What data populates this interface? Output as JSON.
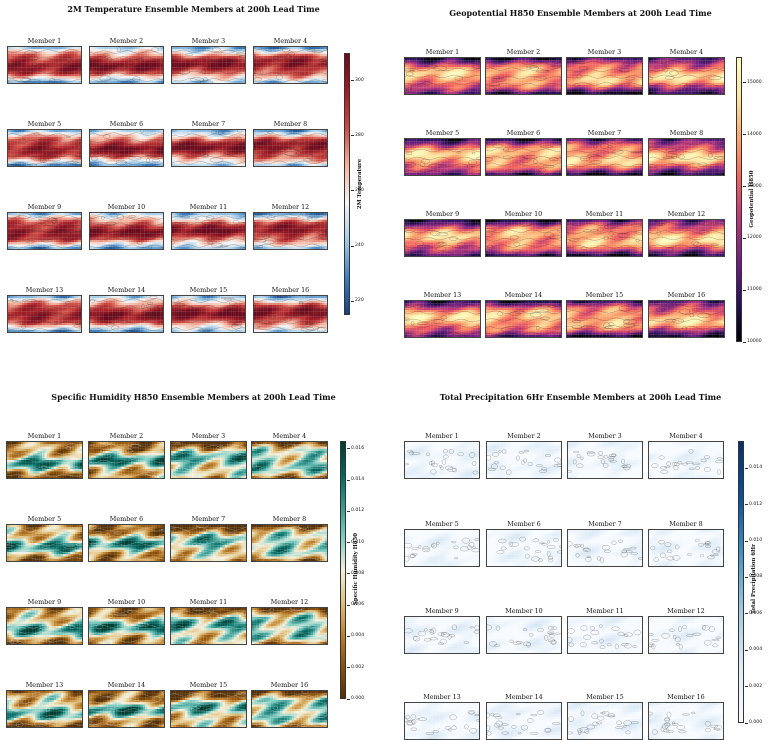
{
  "chart_data": [
    {
      "type": "heatmap",
      "title": "2M Temperature Ensemble Members at 200h Lead Time",
      "colorbar_label": "2M Temperature",
      "colormap": [
        "#1a3f7a",
        "#3f7fbf",
        "#a6cde8",
        "#f5f5f5",
        "#f4b6a0",
        "#cd4a44",
        "#a01c25",
        "#6b0a1c"
      ],
      "contour_color": "#2b2b2b",
      "colorbar_ticks": [
        "300",
        "280",
        "260",
        "240",
        "220"
      ],
      "range": [
        215,
        310
      ],
      "members": [
        "Member 1",
        "Member 2",
        "Member 3",
        "Member 4",
        "Member 5",
        "Member 6",
        "Member 7",
        "Member 8",
        "Member 9",
        "Member 10",
        "Member 11",
        "Member 12",
        "Member 13",
        "Member 14",
        "Member 15",
        "Member 16"
      ]
    },
    {
      "type": "heatmap",
      "title": "Geopotential H850 Ensemble Members at 200h Lead Time",
      "colorbar_label": "Geopotential H850",
      "colormap": [
        "#000004",
        "#2c115f",
        "#721f81",
        "#b73779",
        "#f1605d",
        "#fca46b",
        "#fde4a0",
        "#fcfdbf"
      ],
      "contour_color": "#3a1a2a",
      "colorbar_ticks": [
        "15000",
        "14000",
        "13000",
        "12000",
        "11000",
        "10000"
      ],
      "range": [
        10000,
        15500
      ],
      "members": [
        "Member 1",
        "Member 2",
        "Member 3",
        "Member 4",
        "Member 5",
        "Member 6",
        "Member 7",
        "Member 8",
        "Member 9",
        "Member 10",
        "Member 11",
        "Member 12",
        "Member 13",
        "Member 14",
        "Member 15",
        "Member 16"
      ]
    },
    {
      "type": "heatmap",
      "title": "Specific Humidity H850 Ensemble Members at 200h Lead Time",
      "colorbar_label": "Specific Humidity H850",
      "colormap": [
        "#543005",
        "#8c510a",
        "#bf812d",
        "#dfc27d",
        "#f5f0dc",
        "#80cdc1",
        "#35978f",
        "#01665e",
        "#003c30"
      ],
      "contour_color": "#f5f5f5",
      "colorbar_ticks": [
        "0.016",
        "0.014",
        "0.012",
        "0.010",
        "0.008",
        "0.006",
        "0.004",
        "0.002",
        "0.000"
      ],
      "range": [
        0.0,
        0.0165
      ],
      "members": [
        "Member 1",
        "Member 2",
        "Member 3",
        "Member 4",
        "Member 5",
        "Member 6",
        "Member 7",
        "Member 8",
        "Member 9",
        "Member 10",
        "Member 11",
        "Member 12",
        "Member 13",
        "Member 14",
        "Member 15",
        "Member 16"
      ]
    },
    {
      "type": "heatmap",
      "title": "Total Precipitation 6Hr Ensemble Members at 200h Lead Time",
      "colorbar_label": "Total Precipitation 6Hr",
      "colormap": [
        "#f7fbff",
        "#deebf7",
        "#9ecae1",
        "#4292c6",
        "#08519c",
        "#08306b"
      ],
      "contour_color": "#2a2a2a",
      "colorbar_ticks": [
        "0.014",
        "0.012",
        "0.010",
        "0.008",
        "0.006",
        "0.004",
        "0.002",
        "0.000"
      ],
      "range": [
        0.0,
        0.0155
      ],
      "members": [
        "Member 1",
        "Member 2",
        "Member 3",
        "Member 4",
        "Member 5",
        "Member 6",
        "Member 7",
        "Member 8",
        "Member 9",
        "Member 10",
        "Member 11",
        "Member 12",
        "Member 13",
        "Member 14",
        "Member 15",
        "Member 16"
      ]
    }
  ]
}
